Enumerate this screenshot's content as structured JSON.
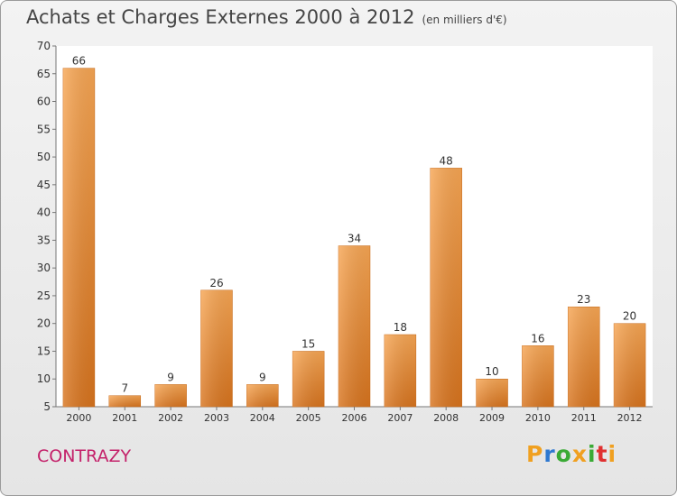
{
  "chart_data": {
    "type": "bar",
    "title": "Achats et Charges Externes 2000 à 2012",
    "subtitle": "(en milliers d'€)",
    "categories": [
      "2000",
      "2001",
      "2002",
      "2003",
      "2004",
      "2005",
      "2006",
      "2007",
      "2008",
      "2009",
      "2010",
      "2011",
      "2012"
    ],
    "values": [
      66,
      7,
      9,
      26,
      9,
      15,
      34,
      18,
      48,
      10,
      16,
      23,
      20
    ],
    "ylim": [
      5,
      70
    ],
    "yticks": [
      5,
      10,
      15,
      20,
      25,
      30,
      35,
      40,
      45,
      50,
      55,
      60,
      65,
      70
    ],
    "grid": false,
    "bar_color": "#e8872e"
  },
  "municipality": "CONTRAZY",
  "logo": {
    "letters": [
      "P",
      "r",
      "o",
      "x",
      "i",
      "t",
      "i"
    ],
    "colors": [
      "#f0a020",
      "#2e78d0",
      "#3aaa35",
      "#f0a020",
      "#3aaa35",
      "#e03030",
      "#f0a020"
    ]
  }
}
